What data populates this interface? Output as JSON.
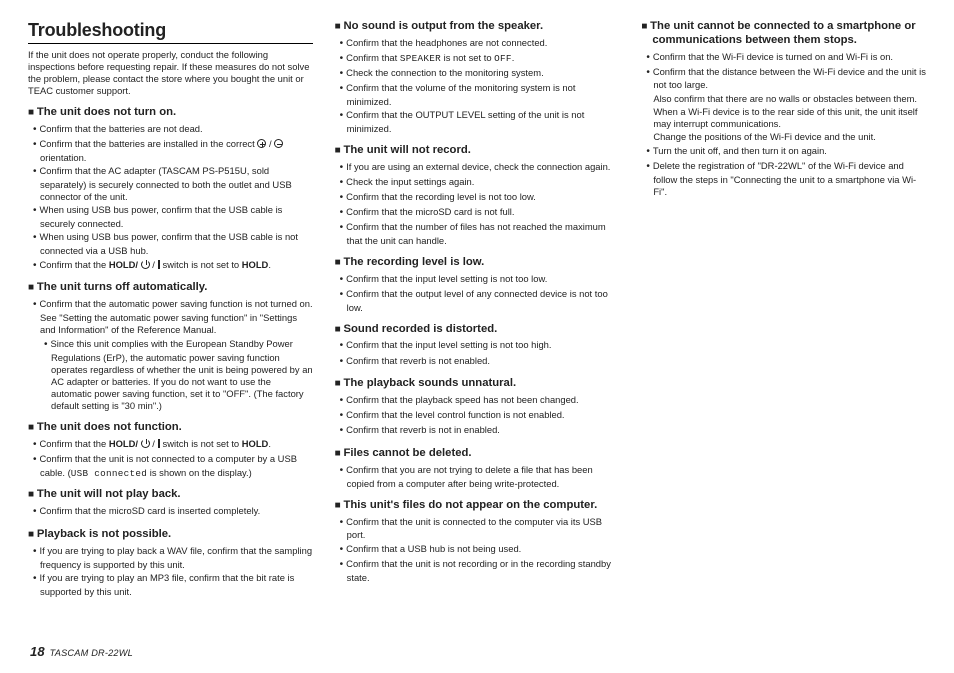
{
  "title": "Troubleshooting",
  "intro": "If the unit does not operate properly, conduct the following inspections before requesting repair. If these measures do not solve the problem, please contact the store where you bought the unit or TEAC customer support.",
  "footer": {
    "pagenum": "18",
    "product": "TASCAM  DR-22WL"
  },
  "sections": {
    "s1": {
      "h": "The unit does not turn on.",
      "i1": "Confirm that the batteries are not dead.",
      "i2a": "Confirm that the batteries are installed in the correct ",
      "i2b": " orientation.",
      "i3": "Confirm that the AC adapter (TASCAM PS-P515U, sold separately) is securely connected to both the outlet and USB connector of the unit.",
      "i4": "When using USB bus power, confirm that the USB cable is securely connected.",
      "i5": "When using USB bus power, confirm that the USB cable is not connected via a USB hub.",
      "i6a": "Confirm that the ",
      "i6hold": "HOLD/",
      "i6b": " switch is not set to ",
      "i6hold2": "HOLD",
      "i6c": "."
    },
    "s2": {
      "h": "The unit turns off automatically.",
      "i1": "Confirm that the automatic power saving function is not turned on. See \"Setting the automatic power saving function\" in \"Settings and Information\" of the Reference Manual.",
      "n1": "Since this unit complies with the European Standby Power Regulations (ErP), the automatic power saving function operates regardless of whether the unit is being powered by an AC adapter or batteries. If you do not want to use the automatic power saving function, set it to \"OFF\". (The factory default setting is \"30 min\".)"
    },
    "s3": {
      "h": "The unit does not function.",
      "i1a": "Confirm that the ",
      "i1hold": "HOLD/",
      "i1b": " switch is not set to ",
      "i1hold2": "HOLD",
      "i1c": ".",
      "i2a": "Confirm that the unit is not connected to a computer by a USB cable. (",
      "i2mono": "USB connected",
      "i2b": " is shown on the display.)"
    },
    "s4": {
      "h": "The unit will not play back.",
      "i1": "Confirm that the microSD card is inserted completely."
    },
    "s5": {
      "h": "Playback is not possible.",
      "i1": "If you are trying to play back a WAV file, confirm that the sampling frequency is supported by this unit.",
      "i2": "If you are trying to play an MP3 file, confirm that the bit rate is supported by this unit."
    },
    "s6": {
      "h": "No sound is output from the speaker.",
      "i1": "Confirm that the headphones are not connected.",
      "i2a": "Confirm that ",
      "i2m1": "SPEAKER",
      "i2b": " is not set to ",
      "i2m2": "OFF",
      "i2c": ".",
      "i3": "Check the connection to the monitoring system.",
      "i4": "Confirm that the volume of the monitoring system is not minimized.",
      "i5": "Confirm that the OUTPUT LEVEL setting of the unit is not minimized."
    },
    "s7": {
      "h": "The unit will not record.",
      "i1": "If you are using an external device, check the connection again.",
      "i2": "Check the input settings again.",
      "i3": "Confirm that the recording level is not too low.",
      "i4": "Confirm that the microSD card is not full.",
      "i5": "Confirm that the number of files has not reached the maximum that the unit can handle."
    },
    "s8": {
      "h": "The recording level is low.",
      "i1": "Confirm that the input level setting is not too low.",
      "i2": "Confirm that the output level of any connected device is not too low."
    },
    "s9": {
      "h": "Sound recorded is distorted.",
      "i1": "Confirm that the input level setting is not too high.",
      "i2": "Confirm that reverb is not enabled."
    },
    "s10": {
      "h": "The playback sounds unnatural.",
      "i1": "Confirm that the playback speed has not been changed.",
      "i2": "Confirm that the level control function is not enabled.",
      "i3": "Confirm that reverb is not in enabled."
    },
    "s11": {
      "h": "Files cannot be deleted.",
      "i1": "Confirm that you are not trying to delete a file that has been copied from a computer after being write-protected."
    },
    "s12": {
      "h": "This unit's files do not appear on the computer.",
      "i1": "Confirm that the unit is connected to the computer via its USB port.",
      "i2": "Confirm that a USB hub is not being used.",
      "i3": "Confirm that the unit is not recording or in the recording standby state."
    },
    "s13": {
      "h": "The unit cannot be connected to a smartphone or communications between them stops.",
      "i1": "Confirm that the Wi-Fi device is turned on and Wi-Fi is on.",
      "i2": "Confirm that the distance between the Wi-Fi device and the unit is not too large.",
      "p2a": "Also confirm that there are no walls or obstacles between them.",
      "p2b": "When a Wi-Fi device is to the rear side of this unit, the unit itself may interrupt communications.",
      "p2c": "Change the positions of the Wi-Fi device and the unit.",
      "i3": "Turn the unit off, and then turn it on again.",
      "i4": "Delete the registration of \"DR-22WL\" of the Wi-Fi device and follow the steps in \"Connecting the unit to a smartphone via Wi-Fi\"."
    }
  }
}
